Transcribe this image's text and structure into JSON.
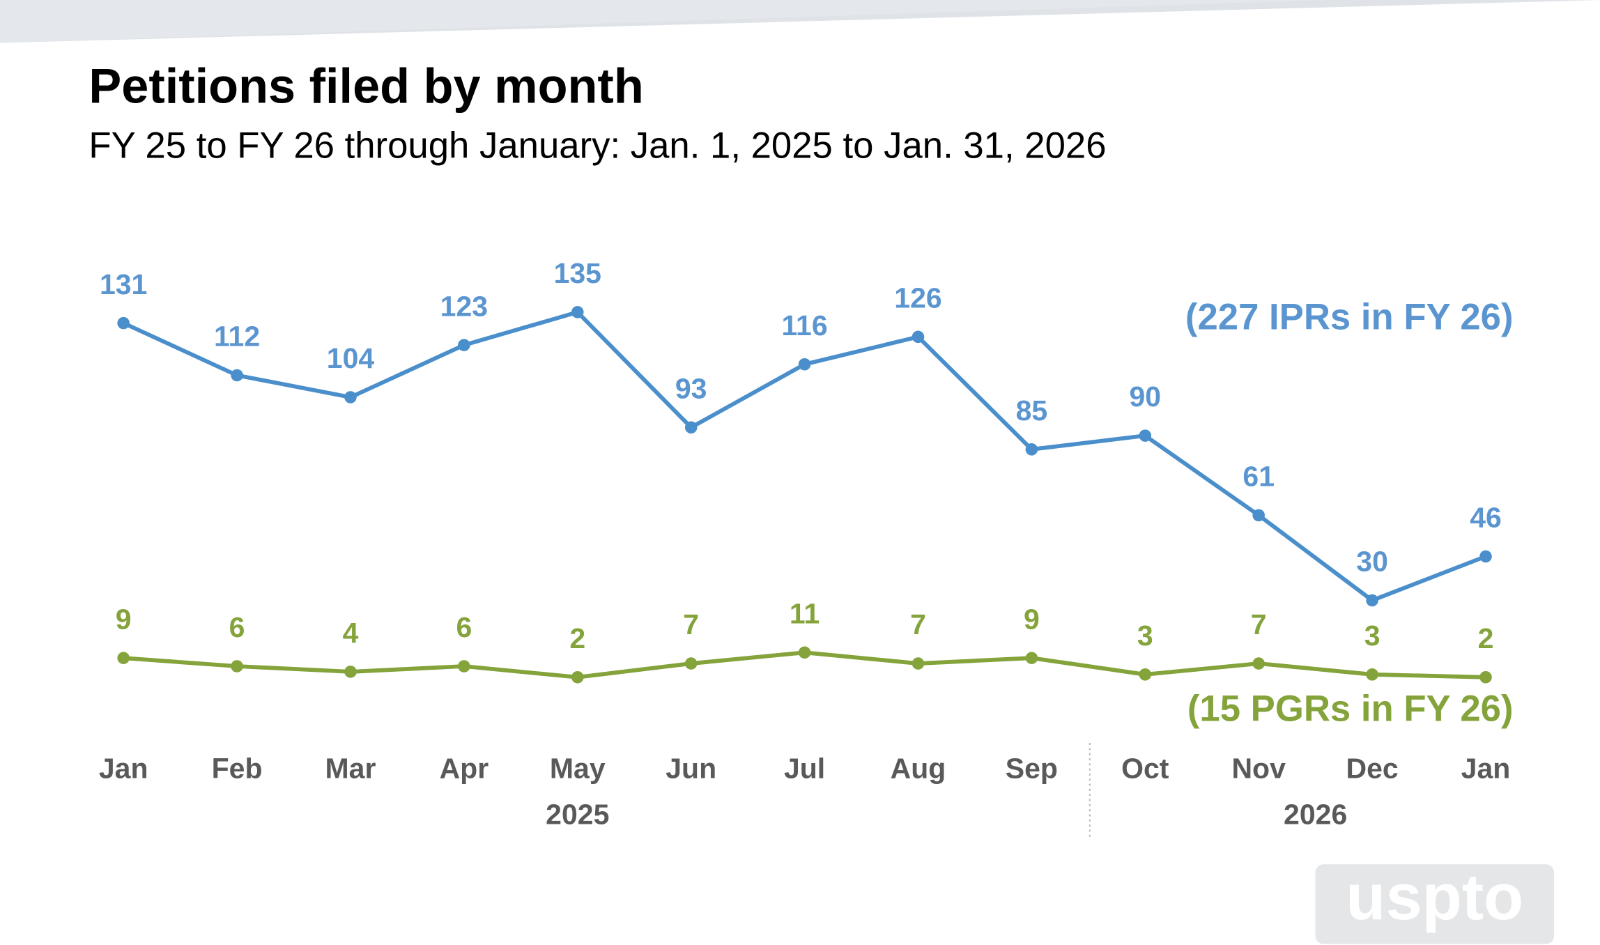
{
  "chart_data": {
    "type": "line",
    "title": "Petitions filed by month",
    "subtitle": "FY 25 to FY 26 through January: Jan. 1, 2025 to Jan. 31, 2026",
    "groups": [
      {
        "label": "2025",
        "categories": [
          "Jan",
          "Feb",
          "Mar",
          "Apr",
          "May",
          "Jun",
          "Jul",
          "Aug",
          "Sep"
        ]
      },
      {
        "label": "2026",
        "categories": [
          "Oct",
          "Nov",
          "Dec",
          "Jan"
        ]
      }
    ],
    "series": [
      {
        "name": "(227 IPRs in FY 26)",
        "color": "#4a8fcb",
        "label_color": "#5b95d0",
        "values": [
          131,
          112,
          104,
          123,
          135,
          93,
          116,
          126,
          85,
          90,
          61,
          30,
          46
        ]
      },
      {
        "name": "(15 PGRs in FY 26)",
        "color": "#84a33a",
        "label_color": "#84a33a",
        "values": [
          9,
          6,
          4,
          6,
          2,
          7,
          11,
          7,
          9,
          3,
          7,
          3,
          2
        ]
      }
    ]
  },
  "logo": "uspto"
}
